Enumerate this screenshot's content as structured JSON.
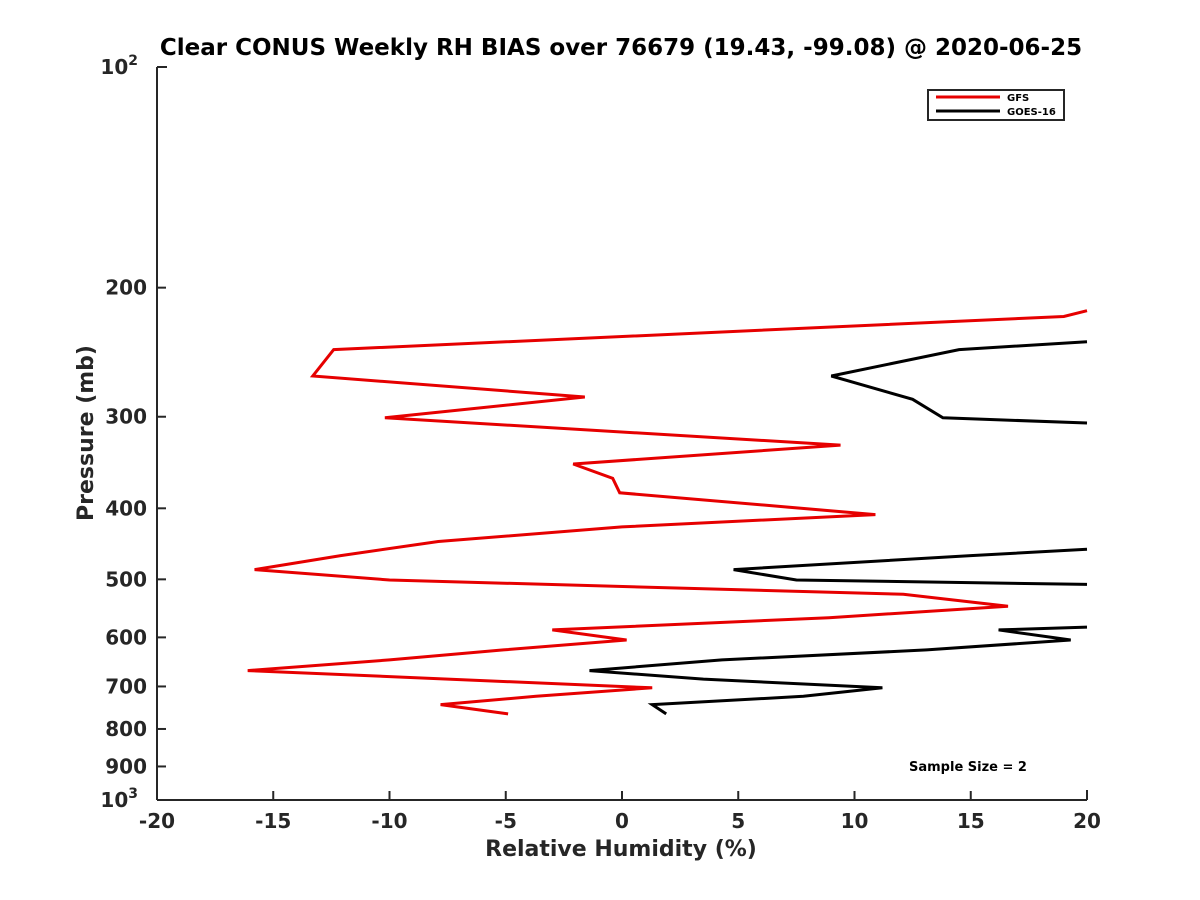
{
  "chart_data": {
    "type": "line",
    "title": "Clear CONUS Weekly RH BIAS over 76679 (19.43, -99.08) @ 2020-06-25",
    "xlabel": "Relative Humidity (%)",
    "ylabel": "Pressure (mb)",
    "xlim": [
      -20,
      20
    ],
    "ylim": [
      100,
      1000
    ],
    "y_scale": "log",
    "y_direction": "reversed",
    "grid": false,
    "legend_position": "top-right",
    "x_ticks": [
      -20,
      -15,
      -10,
      -5,
      0,
      5,
      10,
      15,
      20
    ],
    "x_tick_labels": [
      "-20",
      "-15",
      "-10",
      "-5",
      "0",
      "5",
      "10",
      "15",
      "20"
    ],
    "y_ticks": [
      100,
      200,
      300,
      400,
      500,
      600,
      700,
      800,
      900,
      1000
    ],
    "y_tick_labels": [
      {
        "base": "10",
        "exp": "2"
      },
      {
        "base": "200",
        "exp": ""
      },
      {
        "base": "300",
        "exp": ""
      },
      {
        "base": "400",
        "exp": ""
      },
      {
        "base": "500",
        "exp": ""
      },
      {
        "base": "600",
        "exp": ""
      },
      {
        "base": "700",
        "exp": ""
      },
      {
        "base": "800",
        "exp": ""
      },
      {
        "base": "900",
        "exp": ""
      },
      {
        "base": "10",
        "exp": "3"
      }
    ],
    "annotation": "Sample Size = 2",
    "series": [
      {
        "name": "GFS",
        "color": "#e60000",
        "segments": [
          [
            {
              "x": 20,
              "y": 215
            },
            {
              "x": 19.0,
              "y": 219
            },
            {
              "x": -12.4,
              "y": 243
            },
            {
              "x": -13.3,
              "y": 264
            },
            {
              "x": -1.6,
              "y": 282
            },
            {
              "x": -10.2,
              "y": 301
            },
            {
              "x": 9.4,
              "y": 328
            },
            {
              "x": -2.1,
              "y": 348
            },
            {
              "x": -0.4,
              "y": 364
            },
            {
              "x": -0.1,
              "y": 381
            },
            {
              "x": 10.9,
              "y": 408
            },
            {
              "x": 0,
              "y": 424
            },
            {
              "x": -7.9,
              "y": 444
            },
            {
              "x": -12.1,
              "y": 464
            },
            {
              "x": -15.8,
              "y": 485
            },
            {
              "x": -10.0,
              "y": 501
            },
            {
              "x": 12.1,
              "y": 524
            },
            {
              "x": 16.6,
              "y": 544
            },
            {
              "x": 8.9,
              "y": 564
            },
            {
              "x": -3.0,
              "y": 586
            },
            {
              "x": 0.2,
              "y": 605
            },
            {
              "x": -5.1,
              "y": 624
            },
            {
              "x": -10.0,
              "y": 644
            },
            {
              "x": -16.1,
              "y": 666
            },
            {
              "x": 1.3,
              "y": 703
            },
            {
              "x": -3.7,
              "y": 722
            },
            {
              "x": -7.8,
              "y": 741
            },
            {
              "x": -4.9,
              "y": 763
            }
          ]
        ]
      },
      {
        "name": "GOES-16",
        "color": "#000000",
        "segments": [
          [
            {
              "x": 20,
              "y": 237
            },
            {
              "x": 14.5,
              "y": 243
            },
            {
              "x": 9.0,
              "y": 264
            },
            {
              "x": 12.5,
              "y": 284
            },
            {
              "x": 13.8,
              "y": 301
            },
            {
              "x": 20,
              "y": 306
            }
          ],
          [
            {
              "x": 20,
              "y": 455
            },
            {
              "x": 15.0,
              "y": 464
            },
            {
              "x": 4.8,
              "y": 485
            },
            {
              "x": 7.5,
              "y": 501
            },
            {
              "x": 20,
              "y": 508
            }
          ],
          [
            {
              "x": 20,
              "y": 581
            },
            {
              "x": 16.2,
              "y": 586
            },
            {
              "x": 19.3,
              "y": 605
            },
            {
              "x": 13.1,
              "y": 624
            },
            {
              "x": 4.3,
              "y": 644
            },
            {
              "x": -1.4,
              "y": 666
            },
            {
              "x": 3.5,
              "y": 684
            },
            {
              "x": 11.2,
              "y": 703
            },
            {
              "x": 7.8,
              "y": 722
            },
            {
              "x": 1.3,
              "y": 741
            },
            {
              "x": 1.9,
              "y": 763
            }
          ]
        ]
      }
    ]
  }
}
